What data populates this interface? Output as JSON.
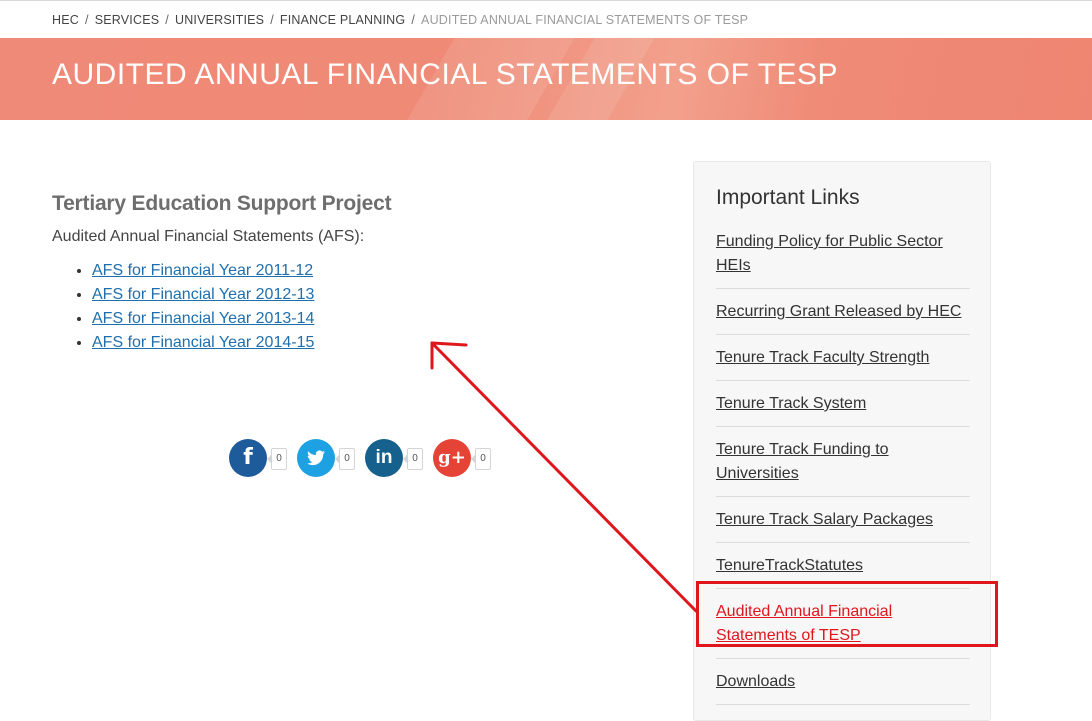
{
  "breadcrumb": {
    "items": [
      "HEC",
      "SERVICES",
      "UNIVERSITIES",
      "FINANCE PLANNING"
    ],
    "separator": "/",
    "current": "AUDITED ANNUAL FINANCIAL STATEMENTS OF TESP"
  },
  "banner": {
    "title": "AUDITED ANNUAL FINANCIAL STATEMENTS OF TESP",
    "color": "#ef8a76"
  },
  "main": {
    "heading": "Tertiary Education Support Project",
    "intro": "Audited Annual Financial Statements (AFS):",
    "links": [
      "AFS for Financial Year 2011-12",
      "AFS for Financial Year 2012-13",
      "AFS for Financial Year 2013-14",
      "AFS for Financial Year 2014-15"
    ]
  },
  "social": [
    {
      "network": "facebook",
      "icon": "facebook-icon",
      "glyph": "f",
      "count": "0",
      "color": "#1e5b9a"
    },
    {
      "network": "twitter",
      "icon": "twitter-icon",
      "glyph": "",
      "count": "0",
      "color": "#1da1e2"
    },
    {
      "network": "linkedin",
      "icon": "linkedin-icon",
      "glyph": "in",
      "count": "0",
      "color": "#15608c"
    },
    {
      "network": "google-plus",
      "icon": "google-plus-icon",
      "glyph": "g+",
      "count": "0",
      "color": "#e54335"
    }
  ],
  "sidebar": {
    "heading": "Important Links",
    "links": [
      "Funding Policy for Public Sector HEIs",
      "Recurring Grant Released by HEC",
      "Tenure Track Faculty Strength",
      "Tenure Track System",
      "Tenure Track Funding to Universities",
      "Tenure Track Salary Packages",
      "TenureTrackStatutes",
      "Audited Annual Financial Statements of TESP",
      "Downloads"
    ],
    "active_index": 7
  },
  "annotation": {
    "color": "#e0161d"
  }
}
